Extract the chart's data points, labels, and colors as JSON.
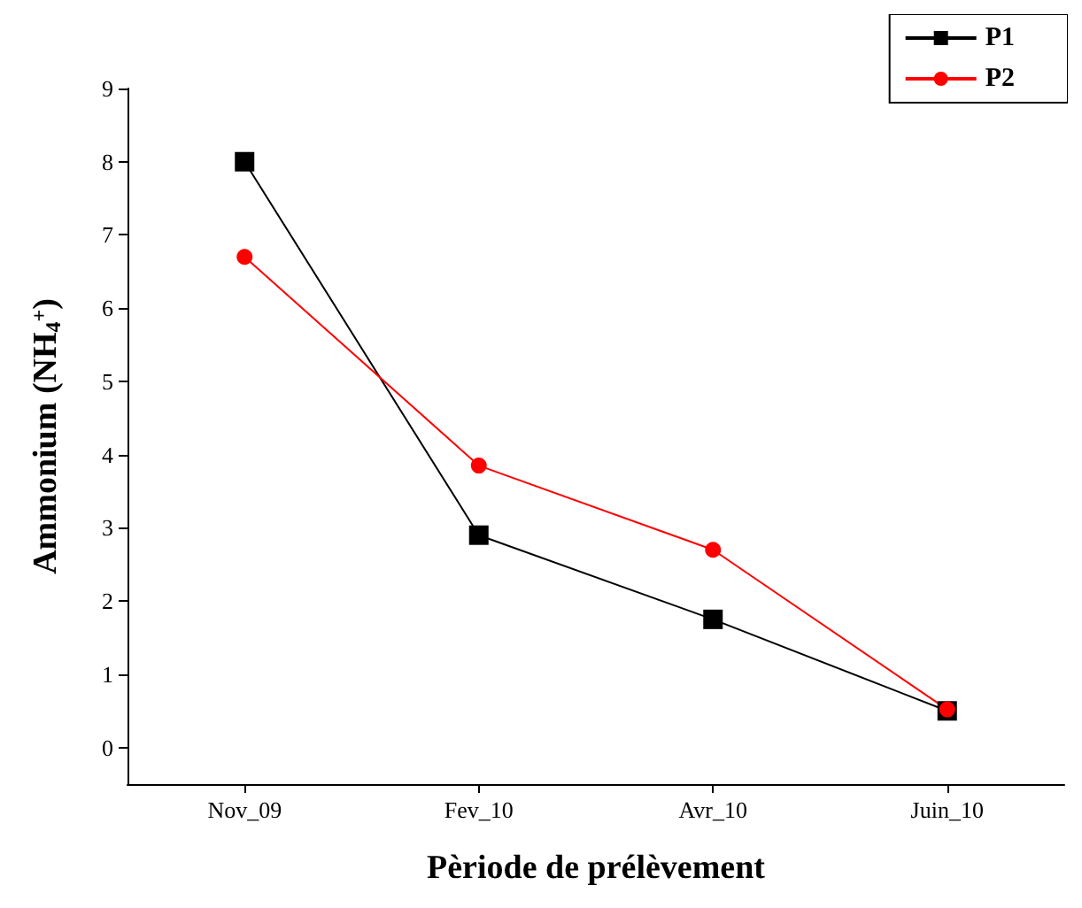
{
  "chart_data": {
    "type": "line",
    "xlabel": "Pèriode de prélèvement",
    "ylabel": "Ammonium (NH$_{4}$$^{+}$)",
    "categories": [
      "Nov_09",
      "Fev_10",
      "Avr_10",
      "Juin_10"
    ],
    "series": [
      {
        "name": "P1",
        "color": "#000000",
        "marker": "square",
        "values": [
          8.0,
          2.9,
          1.75,
          0.5
        ]
      },
      {
        "name": "P2",
        "color": "#ff0000",
        "marker": "circle",
        "values": [
          6.7,
          3.85,
          2.7,
          0.52
        ]
      }
    ],
    "ylim": [
      -0.5,
      9
    ],
    "yticks": [
      0,
      1,
      2,
      3,
      4,
      5,
      6,
      7,
      8,
      9
    ],
    "grid": false,
    "legend": "top right",
    "line_style": "solid"
  }
}
